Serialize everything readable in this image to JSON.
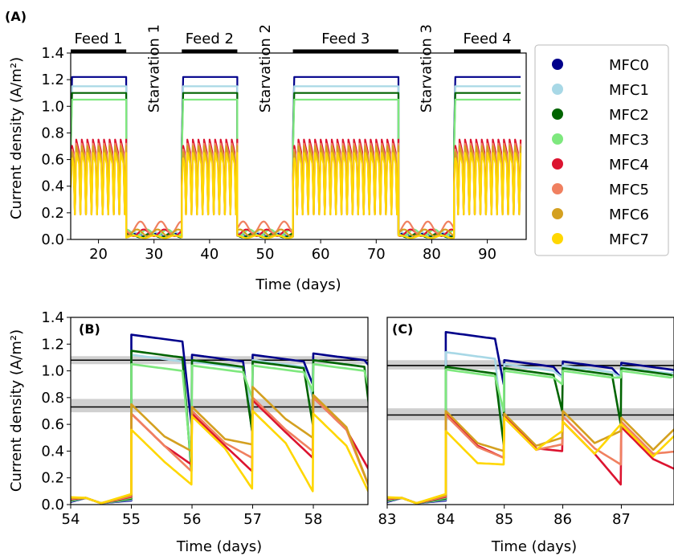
{
  "panel_labels": [
    "(A)",
    "(B)",
    "(C)"
  ],
  "legend": {
    "entries": [
      "MFC0",
      "MFC1",
      "MFC2",
      "MFC3",
      "MFC4",
      "MFC5",
      "MFC6",
      "MFC7"
    ],
    "colors": [
      "#00008b",
      "#a8d8e6",
      "#006400",
      "#7ee87e",
      "#dc1430",
      "#f08060",
      "#d4a020",
      "#ffd700"
    ]
  },
  "chart_data": [
    {
      "panel": "A",
      "type": "line",
      "xlabel": "Time (days)",
      "ylabel": "Current density (A/m²)",
      "xlim": [
        15,
        97
      ],
      "ylim": [
        0,
        1.4
      ],
      "xticks": [
        20,
        30,
        40,
        50,
        60,
        70,
        80,
        90
      ],
      "yticks": [
        0.0,
        0.2,
        0.4,
        0.6,
        0.8,
        1.0,
        1.2,
        1.4
      ],
      "phases": [
        {
          "label": "Feed 1",
          "start": 15,
          "end": 25,
          "kind": "feed"
        },
        {
          "label": "Starvation 1",
          "start": 25,
          "end": 35,
          "kind": "starvation"
        },
        {
          "label": "Feed 2",
          "start": 35,
          "end": 45,
          "kind": "feed"
        },
        {
          "label": "Starvation 2",
          "start": 45,
          "end": 55,
          "kind": "starvation"
        },
        {
          "label": "Feed 3",
          "start": 55,
          "end": 74,
          "kind": "feed"
        },
        {
          "label": "Starvation 3",
          "start": 74,
          "end": 84,
          "kind": "starvation"
        },
        {
          "label": "Feed 4",
          "start": 84,
          "end": 96,
          "kind": "feed"
        }
      ],
      "series_levels": [
        {
          "name": "MFC0",
          "feed_level": 1.22,
          "starve_level": 0.03
        },
        {
          "name": "MFC1",
          "feed_level": 1.15,
          "starve_level": 0.04
        },
        {
          "name": "MFC2",
          "feed_level": 1.1,
          "starve_level": 0.03
        },
        {
          "name": "MFC3",
          "feed_level": 1.05,
          "starve_level": 0.05
        },
        {
          "name": "MFC4",
          "feed_level": 0.75,
          "starve_level": 0.05
        },
        {
          "name": "MFC5",
          "feed_level": 0.72,
          "starve_level": 0.09
        },
        {
          "name": "MFC6",
          "feed_level": 0.7,
          "starve_level": 0.05
        },
        {
          "name": "MFC7",
          "feed_level": 0.65,
          "starve_level": 0.02
        }
      ]
    },
    {
      "panel": "B",
      "type": "line",
      "xlabel": "Time (days)",
      "ylabel": "Current density (A/m²)",
      "xlim": [
        54,
        58.9
      ],
      "ylim": [
        0,
        1.4
      ],
      "xticks": [
        54,
        55,
        56,
        57,
        58
      ],
      "yticks": [
        0.0,
        0.2,
        0.4,
        0.6,
        0.8,
        1.0,
        1.2,
        1.4
      ],
      "reference_bands": [
        {
          "center": 1.08,
          "low": 1.05,
          "high": 1.11
        },
        {
          "center": 0.73,
          "low": 0.69,
          "high": 0.79
        }
      ],
      "cycle_starts": [
        55,
        56,
        57,
        58
      ],
      "series": [
        {
          "name": "MFC0",
          "values": [
            1.27,
            1.12,
            1.12,
            1.13
          ],
          "drop_to": [
            0.6,
            0.55,
            0.9,
            1.0
          ]
        },
        {
          "name": "MFC1",
          "values": [
            1.12,
            1.07,
            1.08,
            1.08
          ],
          "drop_to": [
            0.3,
            0.7,
            0.8,
            0.6
          ]
        },
        {
          "name": "MFC2",
          "values": [
            1.15,
            1.08,
            1.07,
            1.08
          ],
          "drop_to": [
            0.25,
            0.55,
            0.6,
            0.45
          ]
        },
        {
          "name": "MFC3",
          "values": [
            1.05,
            1.04,
            1.04,
            1.05
          ],
          "drop_to": [
            0.3,
            0.8,
            0.85,
            0.75
          ]
        },
        {
          "name": "MFC4",
          "values": [
            0.68,
            0.68,
            0.78,
            0.8
          ],
          "drop_to": [
            0.3,
            0.25,
            0.35,
            0.2
          ]
        },
        {
          "name": "MFC5",
          "values": [
            0.68,
            0.7,
            0.8,
            0.8
          ],
          "drop_to": [
            0.25,
            0.35,
            0.4,
            0.05
          ]
        },
        {
          "name": "MFC6",
          "values": [
            0.75,
            0.73,
            0.88,
            0.82
          ],
          "drop_to": [
            0.4,
            0.45,
            0.5,
            0.05
          ]
        },
        {
          "name": "MFC7",
          "values": [
            0.56,
            0.66,
            0.7,
            0.68
          ],
          "drop_to": [
            0.15,
            0.12,
            0.1,
            0.02
          ]
        }
      ]
    },
    {
      "panel": "C",
      "type": "line",
      "xlabel": "Time (days)",
      "xlim": [
        83,
        87.9
      ],
      "ylim": [
        0,
        1.4
      ],
      "xticks": [
        83,
        84,
        85,
        86,
        87
      ],
      "reference_bands": [
        {
          "center": 1.04,
          "low": 1.01,
          "high": 1.08
        },
        {
          "center": 0.67,
          "low": 0.63,
          "high": 0.72
        }
      ],
      "cycle_starts": [
        84,
        85,
        86,
        87
      ],
      "series": [
        {
          "name": "MFC0",
          "values": [
            1.29,
            1.08,
            1.07,
            1.06
          ],
          "drop_to": [
            0.9,
            0.95,
            0.95,
            1.0
          ]
        },
        {
          "name": "MFC1",
          "values": [
            1.14,
            1.05,
            1.04,
            1.03
          ],
          "drop_to": [
            0.5,
            0.95,
            0.95,
            1.0
          ]
        },
        {
          "name": "MFC2",
          "values": [
            1.03,
            1.02,
            1.02,
            1.02
          ],
          "drop_to": [
            0.45,
            0.7,
            0.6,
            0.95
          ]
        },
        {
          "name": "MFC3",
          "values": [
            1.01,
            1.0,
            1.0,
            1.0
          ],
          "drop_to": [
            0.7,
            0.9,
            0.95,
            0.98
          ]
        },
        {
          "name": "MFC4",
          "values": [
            0.68,
            0.66,
            0.62,
            0.58
          ],
          "drop_to": [
            0.35,
            0.4,
            0.15,
            0.25
          ]
        },
        {
          "name": "MFC5",
          "values": [
            0.67,
            0.65,
            0.66,
            0.62
          ],
          "drop_to": [
            0.35,
            0.45,
            0.3,
            0.4
          ]
        },
        {
          "name": "MFC6",
          "values": [
            0.7,
            0.68,
            0.7,
            0.65
          ],
          "drop_to": [
            0.4,
            0.5,
            0.55,
            0.6
          ]
        },
        {
          "name": "MFC7",
          "values": [
            0.55,
            0.65,
            0.62,
            0.6
          ],
          "drop_to": [
            0.3,
            0.55,
            0.6,
            0.55
          ]
        }
      ]
    }
  ]
}
